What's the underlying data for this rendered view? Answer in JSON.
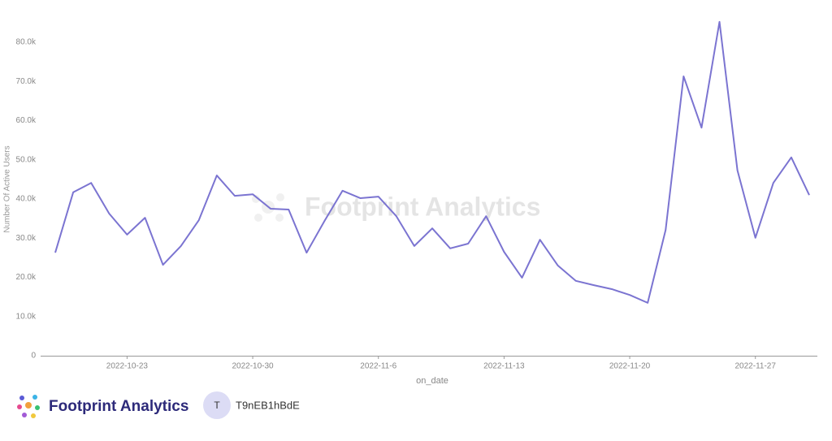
{
  "chart_data": {
    "type": "line",
    "x_label": "on_date",
    "y_label": "Number Of Active Users",
    "watermark": "Footprint Analytics",
    "categories": [
      null,
      null,
      null,
      null,
      "2022-10-23",
      null,
      null,
      null,
      null,
      null,
      null,
      "2022-10-30",
      null,
      null,
      null,
      null,
      null,
      null,
      "2022-11-6",
      null,
      null,
      null,
      null,
      null,
      null,
      "2022-11-13",
      null,
      null,
      null,
      null,
      null,
      null,
      "2022-11-20",
      null,
      null,
      null,
      null,
      null,
      null,
      "2022-11-27",
      null,
      null,
      null
    ],
    "series": [
      {
        "name": "Number Of Active Users",
        "color": "#7b74d1",
        "values": [
          26300,
          41700,
          44100,
          36300,
          30900,
          35200,
          23200,
          28000,
          34600,
          46000,
          40800,
          41200,
          37500,
          37300,
          26300,
          34400,
          42100,
          40200,
          40600,
          35600,
          28000,
          32500,
          27400,
          28600,
          35600,
          26500,
          19900,
          29600,
          23000,
          19100,
          18000,
          17000,
          15500,
          13500,
          32100,
          71300,
          58200,
          85200,
          47300,
          30100,
          44100,
          50600,
          41000
        ]
      }
    ],
    "ylim": [
      0,
      88700
    ],
    "yticks": [
      0,
      {
        "value": 10000,
        "label": "10.0k"
      },
      {
        "value": 20000,
        "label": "20.0k"
      },
      {
        "value": 30000,
        "label": "30.0k"
      },
      {
        "value": 40000,
        "label": "40.0k"
      },
      {
        "value": 50000,
        "label": "50.0k"
      },
      {
        "value": 60000,
        "label": "60.0k"
      },
      {
        "value": 70000,
        "label": "70.0k"
      },
      {
        "value": 80000,
        "label": "80.0k"
      }
    ]
  },
  "footer": {
    "brand": "Footprint Analytics",
    "avatar": "T",
    "user": "T9nEB1hBdE"
  }
}
